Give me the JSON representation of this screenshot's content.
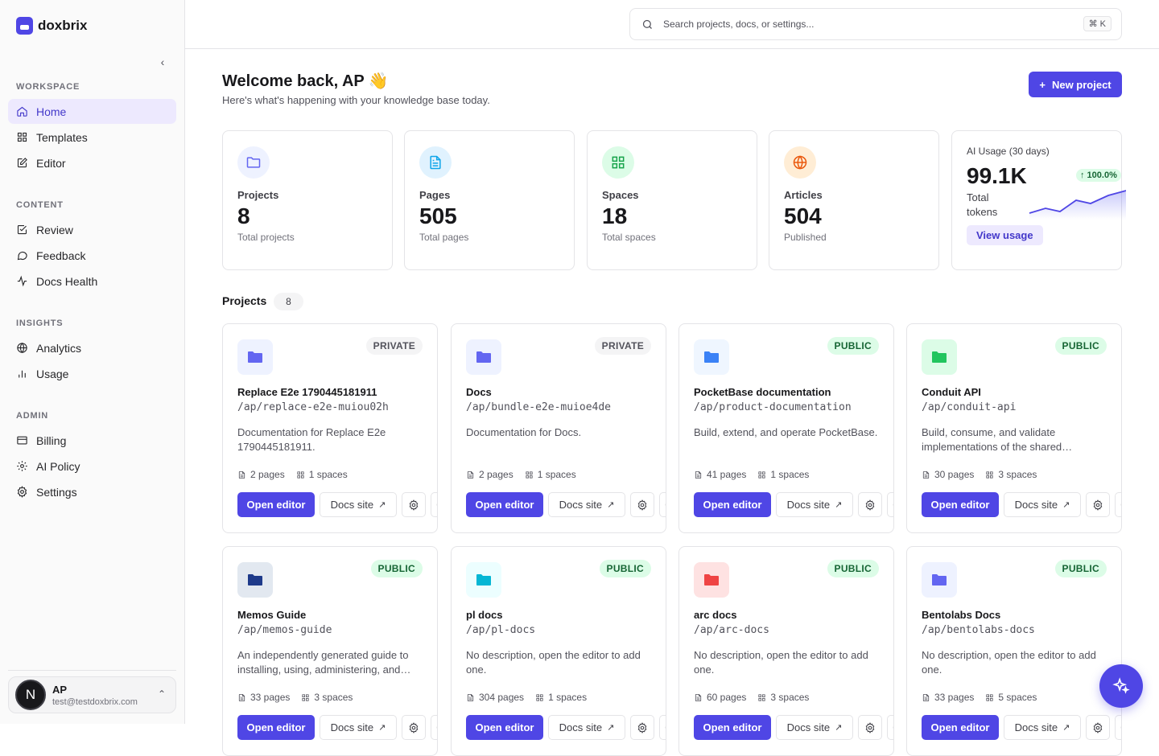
{
  "brand": {
    "name": "doxbrix",
    "accent": "#4f46e5"
  },
  "sidebar": {
    "sections": [
      {
        "label": "WORKSPACE",
        "items": [
          {
            "label": "Home",
            "icon": "home-icon",
            "active": true
          },
          {
            "label": "Templates",
            "icon": "grid-icon"
          },
          {
            "label": "Editor",
            "icon": "edit-icon"
          }
        ]
      },
      {
        "label": "CONTENT",
        "items": [
          {
            "label": "Review",
            "icon": "check-square-icon"
          },
          {
            "label": "Feedback",
            "icon": "message-icon"
          },
          {
            "label": "Docs Health",
            "icon": "activity-icon"
          }
        ]
      },
      {
        "label": "INSIGHTS",
        "items": [
          {
            "label": "Analytics",
            "icon": "globe-icon"
          },
          {
            "label": "Usage",
            "icon": "bar-chart-icon"
          }
        ]
      },
      {
        "label": "ADMIN",
        "items": [
          {
            "label": "Billing",
            "icon": "credit-card-icon"
          },
          {
            "label": "AI Policy",
            "icon": "sun-icon"
          },
          {
            "label": "Settings",
            "icon": "gear-icon"
          }
        ]
      }
    ],
    "user": {
      "initial": "N",
      "name": "AP",
      "email": "test@testdoxbrix.com"
    }
  },
  "search": {
    "placeholder": "Search projects, docs, or settings...",
    "shortcut": "⌘ K"
  },
  "header": {
    "title": "Welcome back, AP 👋",
    "subtitle": "Here's what's happening with your knowledge base today.",
    "new_project_label": "New project"
  },
  "stats": [
    {
      "label": "Projects",
      "value": "8",
      "sub": "Total projects",
      "icon": "folder-icon",
      "color": "#6366f1",
      "bg": "#eef2ff"
    },
    {
      "label": "Pages",
      "value": "505",
      "sub": "Total pages",
      "icon": "file-text-icon",
      "color": "#0ea5e9",
      "bg": "#e0f2fe"
    },
    {
      "label": "Spaces",
      "value": "18",
      "sub": "Total spaces",
      "icon": "grid-icon",
      "color": "#16a34a",
      "bg": "#dcfce7"
    },
    {
      "label": "Articles",
      "value": "504",
      "sub": "Published",
      "icon": "globe-icon",
      "color": "#ea580c",
      "bg": "#ffedd5"
    }
  ],
  "ai_usage": {
    "label": "AI Usage (30 days)",
    "value": "99.1K",
    "sub": "Total tokens",
    "trend": "↑ 100.0%",
    "button": "View usage"
  },
  "projects": {
    "heading": "Projects",
    "count": "8",
    "open_label": "Open editor",
    "docs_label": "Docs site",
    "items": [
      {
        "name": "Replace E2e 1790445181911",
        "slug": "/ap/replace-e2e-muiou02h",
        "desc": "Documentation for Replace E2e 1790445181911.",
        "pages": "2 pages",
        "spaces": "1 spaces",
        "visibility": "PRIVATE",
        "color": "#6366f1",
        "bg": "#eef2ff"
      },
      {
        "name": "Docs",
        "slug": "/ap/bundle-e2e-muioe4de",
        "desc": "Documentation for Docs.",
        "pages": "2 pages",
        "spaces": "1 spaces",
        "visibility": "PRIVATE",
        "color": "#6366f1",
        "bg": "#eef2ff"
      },
      {
        "name": "PocketBase documentation",
        "slug": "/ap/product-documentation",
        "desc": "Build, extend, and operate PocketBase.",
        "pages": "41 pages",
        "spaces": "1 spaces",
        "visibility": "PUBLIC",
        "color": "#3b82f6",
        "bg": "#eff6ff"
      },
      {
        "name": "Conduit API",
        "slug": "/ap/conduit-api",
        "desc": "Build, consume, and validate implementations of the shared…",
        "pages": "30 pages",
        "spaces": "3 spaces",
        "visibility": "PUBLIC",
        "color": "#22c55e",
        "bg": "#dcfce7"
      },
      {
        "name": "Memos Guide",
        "slug": "/ap/memos-guide",
        "desc": "An independently generated guide to installing, using, administering, and…",
        "pages": "33 pages",
        "spaces": "3 spaces",
        "visibility": "PUBLIC",
        "color": "#1e3a8a",
        "bg": "#e2e8f0"
      },
      {
        "name": "pl docs",
        "slug": "/ap/pl-docs",
        "desc": "No description, open the editor to add one.",
        "pages": "304 pages",
        "spaces": "1 spaces",
        "visibility": "PUBLIC",
        "color": "#06b6d4",
        "bg": "#ecfeff"
      },
      {
        "name": "arc docs",
        "slug": "/ap/arc-docs",
        "desc": "No description, open the editor to add one.",
        "pages": "60 pages",
        "spaces": "3 spaces",
        "visibility": "PUBLIC",
        "color": "#ef4444",
        "bg": "#fee2e2"
      },
      {
        "name": "Bentolabs Docs",
        "slug": "/ap/bentolabs-docs",
        "desc": "No description, open the editor to add one.",
        "pages": "33 pages",
        "spaces": "5 spaces",
        "visibility": "PUBLIC",
        "color": "#6366f1",
        "bg": "#eef2ff"
      }
    ]
  }
}
